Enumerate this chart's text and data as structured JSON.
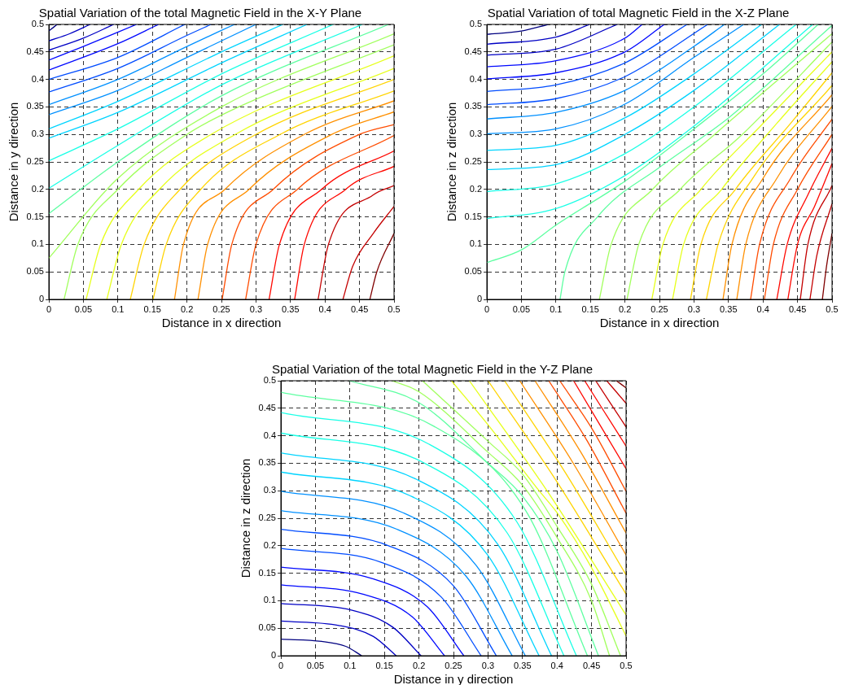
{
  "chart_data": [
    {
      "type": "line",
      "title": "Spatial Variation of the total Magnetic Field in the X-Y Plane",
      "xlabel": "Distance in x direction",
      "ylabel": "Distance in y direction",
      "xlim": [
        0,
        0.5
      ],
      "ylim": [
        0,
        0.5
      ],
      "xticks": [
        0,
        0.05,
        0.1,
        0.15,
        0.2,
        0.25,
        0.3,
        0.35,
        0.4,
        0.45,
        0.5
      ],
      "yticks": [
        0,
        0.05,
        0.1,
        0.15,
        0.2,
        0.25,
        0.3,
        0.35,
        0.4,
        0.45,
        0.5
      ],
      "grid": true,
      "line_style": "solid",
      "series": [
        {
          "color": "#000080",
          "x": [
            0,
            0.012
          ],
          "values": [
            0.488,
            0.5
          ]
        },
        {
          "color": "#0000c4",
          "x": [
            0,
            0.03,
            0.06
          ],
          "values": [
            0.47,
            0.483,
            0.5
          ]
        },
        {
          "color": "#0000c4",
          "x": [
            0,
            0.05,
            0.094
          ],
          "values": [
            0.453,
            0.475,
            0.5
          ]
        },
        {
          "color": "#0008ff",
          "x": [
            0,
            0.05,
            0.127
          ],
          "values": [
            0.435,
            0.46,
            0.5
          ]
        },
        {
          "color": "#0008ff",
          "x": [
            0,
            0.1,
            0.159
          ],
          "values": [
            0.417,
            0.465,
            0.5
          ]
        },
        {
          "color": "#004cff",
          "x": [
            0,
            0.1,
            0.197
          ],
          "values": [
            0.4,
            0.44,
            0.5
          ]
        },
        {
          "color": "#004cff",
          "x": [
            0,
            0.1,
            0.2,
            0.235
          ],
          "values": [
            0.377,
            0.42,
            0.48,
            0.5
          ]
        },
        {
          "color": "#0090ff",
          "x": [
            0,
            0.1,
            0.2,
            0.269
          ],
          "values": [
            0.354,
            0.4,
            0.46,
            0.5
          ]
        },
        {
          "color": "#0090ff",
          "x": [
            0,
            0.1,
            0.2,
            0.3
          ],
          "values": [
            0.336,
            0.38,
            0.44,
            0.5
          ]
        },
        {
          "color": "#00d4ff",
          "x": [
            0,
            0.1,
            0.25,
            0.339
          ],
          "values": [
            0.31,
            0.36,
            0.45,
            0.5
          ]
        },
        {
          "color": "#00d4ff",
          "x": [
            0,
            0.1,
            0.25,
            0.374
          ],
          "values": [
            0.293,
            0.34,
            0.43,
            0.5
          ]
        },
        {
          "color": "#1affe6",
          "x": [
            0,
            0.1,
            0.25,
            0.412
          ],
          "values": [
            0.252,
            0.31,
            0.41,
            0.5
          ]
        },
        {
          "color": "#1affe6",
          "x": [
            0,
            0.1,
            0.25,
            0.454
          ],
          "values": [
            0.202,
            0.28,
            0.39,
            0.5
          ]
        },
        {
          "color": "#5dffa1",
          "x": [
            0,
            0.1,
            0.25,
            0.492
          ],
          "values": [
            0.156,
            0.25,
            0.37,
            0.5
          ]
        },
        {
          "color": "#a1ff5d",
          "x": [
            0,
            0.1,
            0.25,
            0.5
          ],
          "values": [
            0.075,
            0.22,
            0.35,
            0.483
          ]
        },
        {
          "color": "#a1ff5d",
          "x": [
            0.022,
            0.042,
            0.1,
            0.2,
            0.275,
            0.5
          ],
          "values": [
            0,
            0.1,
            0.2,
            0.3,
            0.35,
            0.463
          ]
        },
        {
          "color": "#e6ff1a",
          "x": [
            0.054,
            0.075,
            0.13,
            0.235,
            0.5
          ],
          "values": [
            0,
            0.1,
            0.2,
            0.3,
            0.443
          ]
        },
        {
          "color": "#e6ff1a",
          "x": [
            0.084,
            0.105,
            0.16,
            0.27,
            0.5
          ],
          "values": [
            0,
            0.1,
            0.2,
            0.3,
            0.42
          ]
        },
        {
          "color": "#ffd400",
          "x": [
            0.118,
            0.138,
            0.19,
            0.3,
            0.5
          ],
          "values": [
            0,
            0.1,
            0.2,
            0.3,
            0.4
          ]
        },
        {
          "color": "#ffd400",
          "x": [
            0.151,
            0.17,
            0.22,
            0.335,
            0.5
          ],
          "values": [
            0,
            0.1,
            0.2,
            0.3,
            0.379
          ]
        },
        {
          "color": "#ff9000",
          "x": [
            0.182,
            0.195,
            0.255,
            0.37,
            0.5
          ],
          "values": [
            0,
            0.1,
            0.2,
            0.3,
            0.361
          ]
        },
        {
          "color": "#ff9000",
          "x": [
            0.216,
            0.23,
            0.29,
            0.41,
            0.5
          ],
          "values": [
            0,
            0.1,
            0.2,
            0.3,
            0.341
          ]
        },
        {
          "color": "#ff4c00",
          "x": [
            0.251,
            0.265,
            0.325,
            0.45,
            0.5
          ],
          "values": [
            0,
            0.1,
            0.2,
            0.3,
            0.318
          ]
        },
        {
          "color": "#ff4c00",
          "x": [
            0.285,
            0.3,
            0.36,
            0.5
          ],
          "values": [
            0,
            0.1,
            0.2,
            0.298
          ]
        },
        {
          "color": "#ff0800",
          "x": [
            0.319,
            0.334,
            0.395,
            0.5
          ],
          "values": [
            0,
            0.1,
            0.2,
            0.27
          ]
        },
        {
          "color": "#ff0800",
          "x": [
            0.356,
            0.37,
            0.43,
            0.5
          ],
          "values": [
            0,
            0.1,
            0.2,
            0.242
          ]
        },
        {
          "color": "#c40000",
          "x": [
            0.39,
            0.405,
            0.47,
            0.5
          ],
          "values": [
            0,
            0.1,
            0.19,
            0.207
          ]
        },
        {
          "color": "#c40000",
          "x": [
            0.426,
            0.44,
            0.47,
            0.5
          ],
          "values": [
            0,
            0.06,
            0.12,
            0.169
          ]
        },
        {
          "color": "#800000",
          "x": [
            0.465,
            0.475,
            0.5
          ],
          "values": [
            0,
            0.05,
            0.12
          ]
        }
      ]
    },
    {
      "type": "line",
      "title": "Spatial Variation of total Magnetic Field in the X-Z Plane",
      "xlabel": "Distance in x direction",
      "ylabel": "Distance in z direction",
      "xlim": [
        0,
        0.5
      ],
      "ylim": [
        0,
        0.5
      ],
      "xticks": [
        0,
        0.05,
        0.1,
        0.15,
        0.2,
        0.25,
        0.3,
        0.35,
        0.4,
        0.45,
        0.5
      ],
      "yticks": [
        0,
        0.05,
        0.1,
        0.15,
        0.2,
        0.25,
        0.3,
        0.35,
        0.4,
        0.45,
        0.5
      ],
      "grid": true,
      "line_style": "solid",
      "series": [
        {
          "color": "#000080",
          "x": [
            0,
            0.05,
            0.089
          ],
          "values": [
            0.482,
            0.488,
            0.5
          ]
        },
        {
          "color": "#0000c4",
          "x": [
            0,
            0.1,
            0.149
          ],
          "values": [
            0.464,
            0.477,
            0.5
          ]
        },
        {
          "color": "#0000c4",
          "x": [
            0,
            0.1,
            0.189
          ],
          "values": [
            0.444,
            0.455,
            0.5
          ]
        },
        {
          "color": "#0008ff",
          "x": [
            0,
            0.1,
            0.2,
            0.225
          ],
          "values": [
            0.423,
            0.434,
            0.475,
            0.5
          ]
        },
        {
          "color": "#0008ff",
          "x": [
            0,
            0.1,
            0.2,
            0.257
          ],
          "values": [
            0.401,
            0.412,
            0.45,
            0.5
          ]
        },
        {
          "color": "#004cff",
          "x": [
            0,
            0.1,
            0.2,
            0.29
          ],
          "values": [
            0.378,
            0.39,
            0.43,
            0.5
          ]
        },
        {
          "color": "#004cff",
          "x": [
            0,
            0.1,
            0.2,
            0.32
          ],
          "values": [
            0.354,
            0.365,
            0.405,
            0.5
          ]
        },
        {
          "color": "#0090ff",
          "x": [
            0,
            0.1,
            0.2,
            0.3,
            0.344
          ],
          "values": [
            0.328,
            0.34,
            0.38,
            0.46,
            0.5
          ]
        },
        {
          "color": "#0090ff",
          "x": [
            0,
            0.1,
            0.2,
            0.3,
            0.372
          ],
          "values": [
            0.301,
            0.31,
            0.355,
            0.44,
            0.5
          ]
        },
        {
          "color": "#00d4ff",
          "x": [
            0,
            0.1,
            0.2,
            0.3,
            0.398
          ],
          "values": [
            0.271,
            0.28,
            0.33,
            0.41,
            0.5
          ]
        },
        {
          "color": "#00d4ff",
          "x": [
            0,
            0.1,
            0.2,
            0.3,
            0.424
          ],
          "values": [
            0.236,
            0.245,
            0.3,
            0.38,
            0.5
          ]
        },
        {
          "color": "#1affe6",
          "x": [
            0,
            0.1,
            0.2,
            0.3,
            0.448
          ],
          "values": [
            0.196,
            0.21,
            0.265,
            0.35,
            0.5
          ]
        },
        {
          "color": "#1affe6",
          "x": [
            0,
            0.1,
            0.2,
            0.3,
            0.472
          ],
          "values": [
            0.147,
            0.165,
            0.225,
            0.315,
            0.5
          ]
        },
        {
          "color": "#5dffa1",
          "x": [
            0,
            0.05,
            0.1,
            0.2,
            0.3,
            0.4,
            0.48
          ],
          "values": [
            0.067,
            0.09,
            0.135,
            0.215,
            0.31,
            0.41,
            0.5
          ]
        },
        {
          "color": "#5dffa1",
          "x": [
            0.106,
            0.113,
            0.161,
            0.25,
            0.35,
            0.5
          ],
          "values": [
            0,
            0.05,
            0.151,
            0.24,
            0.33,
            0.498
          ]
        },
        {
          "color": "#a1ff5d",
          "x": [
            0.163,
            0.18,
            0.24,
            0.33,
            0.5
          ],
          "values": [
            0,
            0.1,
            0.2,
            0.3,
            0.483
          ]
        },
        {
          "color": "#a1ff5d",
          "x": [
            0.203,
            0.22,
            0.28,
            0.37,
            0.5
          ],
          "values": [
            0,
            0.1,
            0.2,
            0.3,
            0.468
          ]
        },
        {
          "color": "#e6ff1a",
          "x": [
            0.239,
            0.255,
            0.31,
            0.4,
            0.5
          ],
          "values": [
            0,
            0.1,
            0.2,
            0.32,
            0.45
          ]
        },
        {
          "color": "#e6ff1a",
          "x": [
            0.269,
            0.285,
            0.34,
            0.42,
            0.5
          ],
          "values": [
            0,
            0.1,
            0.2,
            0.32,
            0.432
          ]
        },
        {
          "color": "#ffd400",
          "x": [
            0.295,
            0.31,
            0.36,
            0.44,
            0.5
          ],
          "values": [
            0,
            0.1,
            0.2,
            0.32,
            0.412
          ]
        },
        {
          "color": "#ffd400",
          "x": [
            0.318,
            0.335,
            0.385,
            0.5
          ],
          "values": [
            0,
            0.1,
            0.22,
            0.389
          ]
        },
        {
          "color": "#ff9000",
          "x": [
            0.342,
            0.355,
            0.4,
            0.5
          ],
          "values": [
            0,
            0.1,
            0.22,
            0.372
          ]
        },
        {
          "color": "#ff9000",
          "x": [
            0.362,
            0.375,
            0.42,
            0.5
          ],
          "values": [
            0,
            0.1,
            0.22,
            0.351
          ]
        },
        {
          "color": "#ff4c00",
          "x": [
            0.382,
            0.395,
            0.44,
            0.5
          ],
          "values": [
            0,
            0.1,
            0.22,
            0.328
          ]
        },
        {
          "color": "#ff4c00",
          "x": [
            0.402,
            0.415,
            0.45,
            0.5
          ],
          "values": [
            0,
            0.1,
            0.2,
            0.3
          ]
        },
        {
          "color": "#ff0800",
          "x": [
            0.42,
            0.435,
            0.465,
            0.5
          ],
          "values": [
            0,
            0.1,
            0.19,
            0.275
          ]
        },
        {
          "color": "#ff0800",
          "x": [
            0.436,
            0.45,
            0.475,
            0.5
          ],
          "values": [
            0,
            0.1,
            0.17,
            0.247
          ]
        },
        {
          "color": "#c40000",
          "x": [
            0.454,
            0.465,
            0.5
          ],
          "values": [
            0,
            0.1,
            0.207
          ]
        },
        {
          "color": "#c40000",
          "x": [
            0.468,
            0.478,
            0.5
          ],
          "values": [
            0,
            0.08,
            0.174
          ]
        },
        {
          "color": "#800000",
          "x": [
            0.486,
            0.492,
            0.5
          ],
          "values": [
            0,
            0.06,
            0.12
          ]
        }
      ]
    },
    {
      "type": "line",
      "title": "Spatial Variation of the total Magnetic Field in the Y-Z Plane",
      "xlabel": "Distance in y direction",
      "ylabel": "Distance in z direction",
      "xlim": [
        0,
        0.5
      ],
      "ylim": [
        0,
        0.5
      ],
      "xticks": [
        0,
        0.05,
        0.1,
        0.15,
        0.2,
        0.25,
        0.3,
        0.35,
        0.4,
        0.45,
        0.5
      ],
      "yticks": [
        0,
        0.05,
        0.1,
        0.15,
        0.2,
        0.25,
        0.3,
        0.35,
        0.4,
        0.45,
        0.5
      ],
      "grid": true,
      "line_style": "solid",
      "series": [
        {
          "color": "#000080",
          "x": [
            0,
            0.059,
            0.094,
            0.117
          ],
          "values": [
            0.03,
            0.026,
            0.017,
            0
          ]
        },
        {
          "color": "#0000c4",
          "x": [
            0,
            0.084,
            0.134,
            0.167
          ],
          "values": [
            0.063,
            0.055,
            0.035,
            0
          ]
        },
        {
          "color": "#0000c4",
          "x": [
            0,
            0.102,
            0.162,
            0.203
          ],
          "values": [
            0.095,
            0.083,
            0.052,
            0
          ]
        },
        {
          "color": "#0008ff",
          "x": [
            0,
            0.119,
            0.19,
            0.237
          ],
          "values": [
            0.129,
            0.112,
            0.071,
            0
          ]
        },
        {
          "color": "#0008ff",
          "x": [
            0,
            0.133,
            0.212,
            0.265
          ],
          "values": [
            0.161,
            0.14,
            0.089,
            0
          ]
        },
        {
          "color": "#004cff",
          "x": [
            0,
            0.145,
            0.232,
            0.29
          ],
          "values": [
            0.195,
            0.17,
            0.107,
            0
          ]
        },
        {
          "color": "#004cff",
          "x": [
            0,
            0.156,
            0.25,
            0.312
          ],
          "values": [
            0.23,
            0.2,
            0.127,
            0
          ]
        },
        {
          "color": "#0090ff",
          "x": [
            0,
            0.168,
            0.268,
            0.335
          ],
          "values": [
            0.264,
            0.23,
            0.145,
            0
          ]
        },
        {
          "color": "#0090ff",
          "x": [
            0,
            0.177,
            0.283,
            0.354
          ],
          "values": [
            0.299,
            0.26,
            0.164,
            0
          ]
        },
        {
          "color": "#00d4ff",
          "x": [
            0,
            0.187,
            0.299,
            0.374
          ],
          "values": [
            0.334,
            0.291,
            0.184,
            0
          ]
        },
        {
          "color": "#00d4ff",
          "x": [
            0,
            0.196,
            0.314,
            0.392
          ],
          "values": [
            0.369,
            0.321,
            0.203,
            0
          ]
        },
        {
          "color": "#1affe6",
          "x": [
            0,
            0.205,
            0.328,
            0.41
          ],
          "values": [
            0.405,
            0.352,
            0.223,
            0
          ]
        },
        {
          "color": "#1affe6",
          "x": [
            0,
            0.214,
            0.342,
            0.428
          ],
          "values": [
            0.442,
            0.385,
            0.243,
            0
          ]
        },
        {
          "color": "#5dffa1",
          "x": [
            0,
            0.222,
            0.355,
            0.444
          ],
          "values": [
            0.479,
            0.417,
            0.263,
            0
          ]
        },
        {
          "color": "#5dffa1",
          "x": [
            0.099,
            0.2,
            0.3,
            0.35,
            0.4,
            0.46
          ],
          "values": [
            0.5,
            0.46,
            0.35,
            0.29,
            0.19,
            0
          ]
        },
        {
          "color": "#a1ff5d",
          "x": [
            0.161,
            0.2,
            0.3,
            0.35,
            0.4,
            0.45,
            0.476
          ],
          "values": [
            0.5,
            0.48,
            0.37,
            0.31,
            0.215,
            0.1,
            0
          ]
        },
        {
          "color": "#a1ff5d",
          "x": [
            0.205,
            0.3,
            0.35,
            0.4,
            0.45,
            0.492
          ],
          "values": [
            0.5,
            0.39,
            0.33,
            0.235,
            0.13,
            0
          ]
        },
        {
          "color": "#e6ff1a",
          "x": [
            0.247,
            0.3,
            0.374,
            0.4,
            0.45,
            0.5
          ],
          "values": [
            0.5,
            0.42,
            0.3,
            0.26,
            0.16,
            0.036
          ]
        },
        {
          "color": "#e6ff1a",
          "x": [
            0.273,
            0.387,
            0.5
          ],
          "values": [
            0.5,
            0.297,
            0.074
          ]
        },
        {
          "color": "#ffd400",
          "x": [
            0.3,
            0.4,
            0.5
          ],
          "values": [
            0.5,
            0.316,
            0.112
          ]
        },
        {
          "color": "#ffd400",
          "x": [
            0.324,
            0.412,
            0.5
          ],
          "values": [
            0.5,
            0.333,
            0.147
          ]
        },
        {
          "color": "#ff9000",
          "x": [
            0.346,
            0.423,
            0.5
          ],
          "values": [
            0.5,
            0.351,
            0.183
          ]
        },
        {
          "color": "#ff9000",
          "x": [
            0.368,
            0.434,
            0.5
          ],
          "values": [
            0.5,
            0.371,
            0.223
          ]
        },
        {
          "color": "#ff4c00",
          "x": [
            0.388,
            0.444,
            0.5
          ],
          "values": [
            0.5,
            0.39,
            0.259
          ]
        },
        {
          "color": "#ff4c00",
          "x": [
            0.404,
            0.452,
            0.5
          ],
          "values": [
            0.5,
            0.41,
            0.299
          ]
        },
        {
          "color": "#ff0800",
          "x": [
            0.424,
            0.5
          ],
          "values": [
            0.5,
            0.34
          ]
        },
        {
          "color": "#ff0800",
          "x": [
            0.44,
            0.5
          ],
          "values": [
            0.5,
            0.381
          ]
        },
        {
          "color": "#c40000",
          "x": [
            0.456,
            0.5
          ],
          "values": [
            0.5,
            0.416
          ]
        },
        {
          "color": "#c40000",
          "x": [
            0.472,
            0.5
          ],
          "values": [
            0.5,
            0.459
          ]
        },
        {
          "color": "#800000",
          "x": [
            0.486,
            0.5
          ],
          "values": [
            0.5,
            0.487
          ]
        }
      ]
    }
  ]
}
